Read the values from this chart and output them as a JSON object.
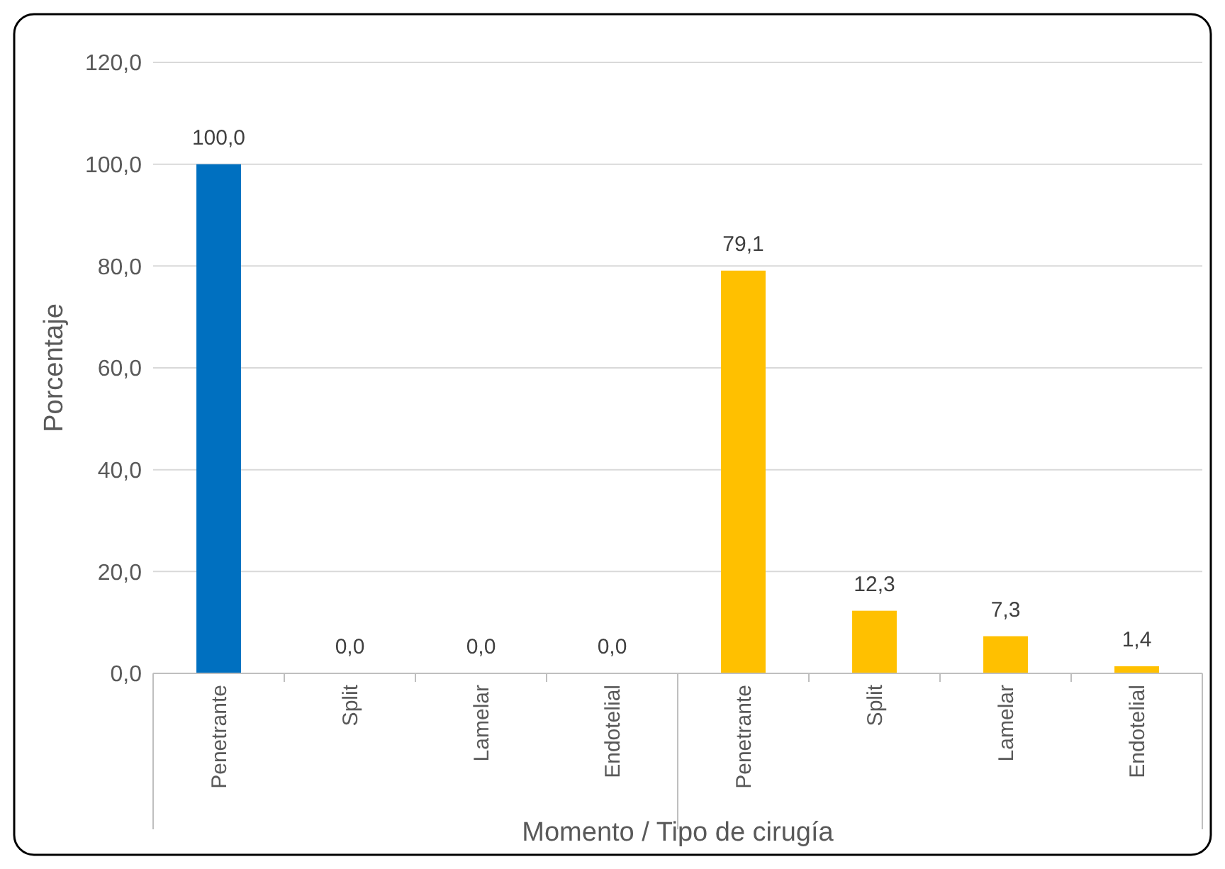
{
  "chart_data": {
    "type": "bar",
    "xlabel": "Momento / Tipo de cirugía",
    "ylabel": "Porcentaje",
    "categories": [
      "Penetrante",
      "Split",
      "Lamelar",
      "Endotelial",
      "Penetrante",
      "Split",
      "Lamelar",
      "Endotelial"
    ],
    "values": [
      100.0,
      0.0,
      0.0,
      0.0,
      79.1,
      12.3,
      7.3,
      1.4
    ],
    "value_labels": [
      "100,0",
      "0,0",
      "0,0",
      "0,0",
      "79,1",
      "12,3",
      "7,3",
      "1,4"
    ],
    "colors": [
      "#0070c0",
      "#0070c0",
      "#0070c0",
      "#0070c0",
      "#ffc000",
      "#ffc000",
      "#ffc000",
      "#ffc000"
    ],
    "ylim": [
      0,
      120
    ],
    "yticks": [
      {
        "value": 0,
        "label": "0,0"
      },
      {
        "value": 20,
        "label": "20,0"
      },
      {
        "value": 40,
        "label": "40,0"
      },
      {
        "value": 60,
        "label": "60,0"
      },
      {
        "value": 80,
        "label": "80,0"
      },
      {
        "value": 100,
        "label": "100,0"
      },
      {
        "value": 120,
        "label": "120,0"
      }
    ],
    "grid": "y"
  }
}
